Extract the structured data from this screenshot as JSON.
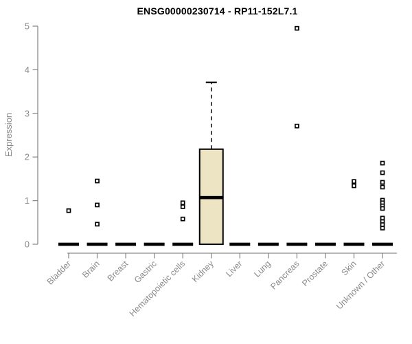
{
  "chart_data": {
    "type": "boxplot",
    "title": "ENSG00000230714 - RP11-152L7.1",
    "xlabel": "",
    "ylabel": "Expression",
    "ylim": [
      0,
      5
    ],
    "yticks": [
      0,
      1,
      2,
      3,
      4,
      5
    ],
    "grid": false,
    "legend": null,
    "axis_color": "#8a8a8a",
    "box_fill": "#ede4c4",
    "box_stroke": "#000000",
    "outlier_fill": "#ffffff",
    "categories": [
      "Bladder",
      "Brain",
      "Breast",
      "Gastric",
      "Hematopoietic cells",
      "Kidney",
      "Liver",
      "Lung",
      "Pancreas",
      "Prostate",
      "Skin",
      "Unknown / Other"
    ],
    "boxes": [
      {
        "label": "Bladder",
        "whisker_low": 0,
        "q1": 0,
        "median": 0,
        "q3": 0,
        "whisker_high": 0,
        "outliers": [
          0.77
        ]
      },
      {
        "label": "Brain",
        "whisker_low": 0,
        "q1": 0,
        "median": 0,
        "q3": 0,
        "whisker_high": 0,
        "outliers": [
          1.45,
          0.9,
          0.46
        ]
      },
      {
        "label": "Breast",
        "whisker_low": 0,
        "q1": 0,
        "median": 0,
        "q3": 0,
        "whisker_high": 0,
        "outliers": []
      },
      {
        "label": "Gastric",
        "whisker_low": 0,
        "q1": 0,
        "median": 0,
        "q3": 0,
        "whisker_high": 0,
        "outliers": []
      },
      {
        "label": "Hematopoietic cells",
        "whisker_low": 0,
        "q1": 0,
        "median": 0,
        "q3": 0,
        "whisker_high": 0,
        "outliers": [
          0.95,
          0.86,
          0.58
        ]
      },
      {
        "label": "Kidney",
        "whisker_low": 0,
        "q1": 0,
        "median": 1.07,
        "q3": 2.18,
        "whisker_high": 3.71,
        "outliers": []
      },
      {
        "label": "Liver",
        "whisker_low": 0,
        "q1": 0,
        "median": 0,
        "q3": 0,
        "whisker_high": 0,
        "outliers": []
      },
      {
        "label": "Lung",
        "whisker_low": 0,
        "q1": 0,
        "median": 0,
        "q3": 0,
        "whisker_high": 0,
        "outliers": []
      },
      {
        "label": "Pancreas",
        "whisker_low": 0,
        "q1": 0,
        "median": 0,
        "q3": 0,
        "whisker_high": 0,
        "outliers": [
          4.95,
          2.71
        ]
      },
      {
        "label": "Prostate",
        "whisker_low": 0,
        "q1": 0,
        "median": 0,
        "q3": 0,
        "whisker_high": 0,
        "outliers": []
      },
      {
        "label": "Skin",
        "whisker_low": 0,
        "q1": 0,
        "median": 0,
        "q3": 0,
        "whisker_high": 0,
        "outliers": [
          1.44,
          1.34
        ]
      },
      {
        "label": "Unknown / Other",
        "whisker_low": 0,
        "q1": 0,
        "median": 0,
        "q3": 0,
        "whisker_high": 0,
        "outliers": [
          1.86,
          1.64,
          1.42,
          1.31,
          1.01,
          0.95,
          0.88,
          0.82,
          0.6,
          0.52,
          0.45,
          0.37
        ]
      }
    ]
  }
}
